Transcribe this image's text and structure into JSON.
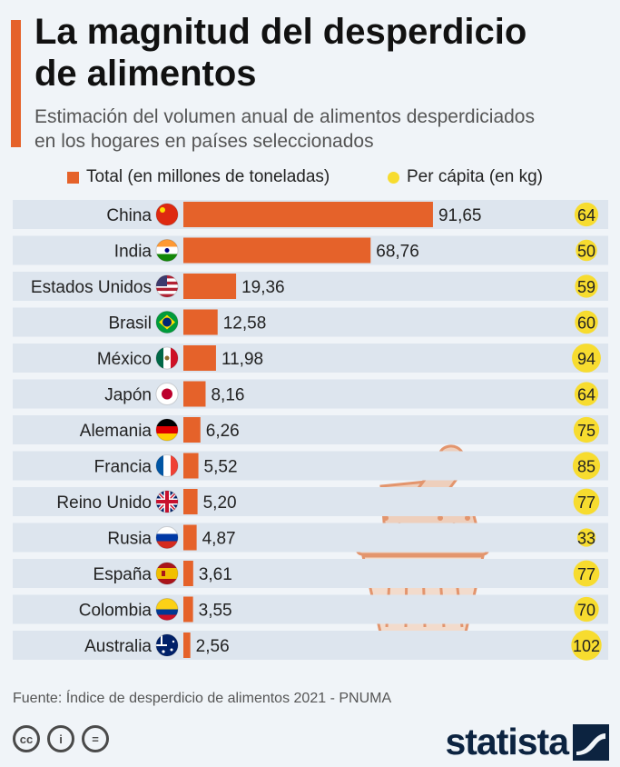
{
  "header": {
    "title_line1": "La magnitud del desperdicio",
    "title_line2": "de alimentos",
    "subtitle_line1": "Estimación del volumen anual de alimentos desperdiciados",
    "subtitle_line2": "en los hogares en países seleccionados"
  },
  "legend": {
    "total_label": "Total (en millones de toneladas)",
    "percapita_label": "Per cápita (en kg)"
  },
  "colors": {
    "bar": "#e5622a",
    "bubble": "#f7dc2f",
    "row_band": "#dde5ee",
    "brand": "#0c2340"
  },
  "chart_data": {
    "type": "bar",
    "orientation": "horizontal",
    "categories": [
      "China",
      "India",
      "Estados Unidos",
      "Brasil",
      "México",
      "Japón",
      "Alemania",
      "Francia",
      "Reino Unido",
      "Rusia",
      "España",
      "Colombia",
      "Australia"
    ],
    "series": [
      {
        "name": "Total (en millones de toneladas)",
        "values": [
          91.65,
          68.76,
          19.36,
          12.58,
          11.98,
          8.16,
          6.26,
          5.52,
          5.2,
          4.87,
          3.61,
          3.55,
          2.56
        ]
      },
      {
        "name": "Per cápita (en kg)",
        "values": [
          64,
          50,
          59,
          60,
          94,
          64,
          75,
          85,
          77,
          33,
          77,
          70,
          102
        ]
      }
    ],
    "value_labels": [
      "91,65",
      "68,76",
      "19,36",
      "12,58",
      "11,98",
      "8,16",
      "6,26",
      "5,52",
      "5,20",
      "4,87",
      "3,61",
      "3,55",
      "2,56"
    ],
    "percapita_labels": [
      "64",
      "50",
      "59",
      "60",
      "94",
      "64",
      "75",
      "85",
      "77",
      "33",
      "77",
      "70",
      "102"
    ],
    "flags": [
      "china-flag",
      "india-flag",
      "usa-flag",
      "brazil-flag",
      "mexico-flag",
      "japan-flag",
      "germany-flag",
      "france-flag",
      "uk-flag",
      "russia-flag",
      "spain-flag",
      "colombia-flag",
      "australia-flag"
    ],
    "xlim": [
      0,
      100
    ],
    "grid": false,
    "legend_position": "top"
  },
  "footer": {
    "source": "Fuente: Índice de desperdicio de alimentos 2021 - PNUMA",
    "cc_icons": [
      "cc-icon",
      "attribution-icon",
      "no-derivatives-icon"
    ],
    "cc_glyphs": [
      "cc",
      "i",
      "="
    ],
    "brand": "statista"
  }
}
